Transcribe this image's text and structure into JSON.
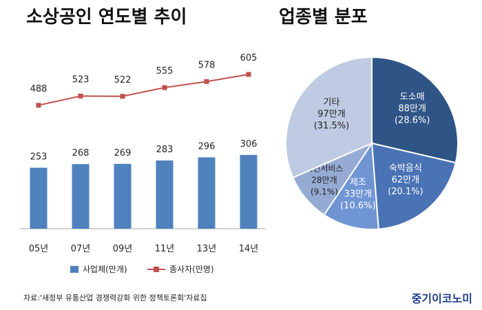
{
  "titles": {
    "left": "소상공인 연도별 추이",
    "right": "업종별 분포"
  },
  "chart_data": [
    {
      "type": "bar",
      "categories": [
        "05년",
        "07년",
        "09년",
        "11년",
        "13년",
        "14년"
      ],
      "series": [
        {
          "name": "사업체(만개)",
          "type": "bar",
          "values": [
            253,
            268,
            269,
            283,
            296,
            306
          ],
          "color": "#4f81bd"
        },
        {
          "name": "종사자(만명)",
          "type": "line",
          "values": [
            488,
            523,
            522,
            555,
            578,
            605
          ],
          "color": "#c0504d"
        }
      ],
      "legend_position": "bottom",
      "grid": false
    },
    {
      "type": "pie",
      "slices": [
        {
          "label": "도소매",
          "value_text": "88만개",
          "percent_text": "(28.6%)",
          "value": 28.6,
          "color": "#2f5486"
        },
        {
          "label": "숙박음식",
          "value_text": "62만개",
          "percent_text": "(20.1%)",
          "value": 20.1,
          "color": "#4a73b5"
        },
        {
          "label": "제조",
          "value_text": "33만개",
          "percent_text": "(10.6%)",
          "value": 10.6,
          "color": "#6f95d3"
        },
        {
          "label": "개인서비스",
          "value_text": "28만개",
          "percent_text": "(9.1%)",
          "value": 9.1,
          "color": "#95abd3"
        },
        {
          "label": "기타",
          "value_text": "97만개",
          "percent_text": "(31.5%)",
          "value": 31.5,
          "color": "#bfcbe2"
        }
      ]
    }
  ],
  "footer": {
    "source": "자료:'새정부 유통산업 경쟁력강화 위한 정책토론회'자료집",
    "brand": "중기이코노미"
  }
}
